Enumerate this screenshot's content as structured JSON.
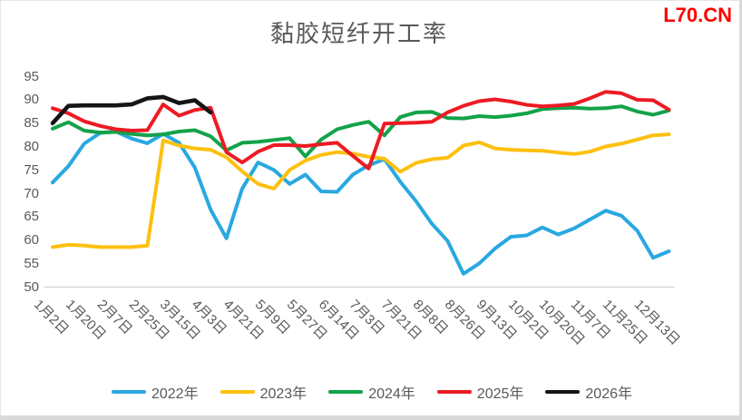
{
  "title": "黏胶短纤开工率",
  "watermark": "L70.CN",
  "colors": {
    "axis_line": "#d9d9d9",
    "tick_text": "#595959",
    "title_text": "#595959",
    "watermark_text": "#ff0000"
  },
  "chart_data": {
    "type": "line",
    "title": "黏胶短纤开工率",
    "ylabel": "",
    "xlabel": "",
    "ylim": [
      50,
      95
    ],
    "y_ticks": [
      50,
      55,
      60,
      65,
      70,
      75,
      80,
      85,
      90,
      95
    ],
    "grid": false,
    "legend_position": "bottom",
    "x_tick_labels": [
      "1月2日",
      "1月20日",
      "2月7日",
      "2月25日",
      "3月15日",
      "4月3日",
      "4月21日",
      "5月9日",
      "5月27日",
      "6月14日",
      "7月3日",
      "7月21日",
      "8月8日",
      "8月26日",
      "9月13日",
      "10月2日",
      "10月20日",
      "11月7日",
      "11月25日",
      "12月13日"
    ],
    "series": [
      {
        "name": "2022年",
        "color": "#29a8e1",
        "values": [
          72.3,
          75.8,
          80.6,
          82.9,
          83.2,
          81.7,
          80.7,
          82.7,
          80.8,
          75.5,
          66.5,
          60.4,
          71.0,
          76.6,
          75.0,
          72.0,
          74.0,
          70.4,
          70.3,
          74.0,
          76.0,
          77.3,
          72.5,
          68.3,
          63.5,
          59.8,
          52.8,
          55.0,
          58.2,
          60.7,
          61.0,
          62.7,
          61.2,
          62.5,
          64.4,
          66.3,
          65.2,
          62.0,
          56.2,
          57.6
        ]
      },
      {
        "name": "2023年",
        "color": "#fdc00f",
        "values": [
          58.5,
          59.0,
          58.8,
          58.5,
          58.5,
          58.5,
          58.8,
          81.3,
          80.2,
          79.6,
          79.3,
          77.7,
          74.7,
          72.0,
          71.0,
          75.0,
          77.0,
          78.2,
          78.8,
          78.5,
          77.8,
          77.4,
          74.6,
          76.5,
          77.3,
          77.6,
          80.2,
          80.9,
          79.6,
          79.3,
          79.2,
          79.1,
          78.7,
          78.4,
          78.9,
          80.0,
          80.6,
          81.5,
          82.4,
          82.6
        ]
      },
      {
        "name": "2024年",
        "color": "#13a24a",
        "values": [
          83.8,
          85.2,
          83.4,
          83.0,
          83.1,
          82.7,
          82.4,
          82.6,
          83.2,
          83.5,
          82.2,
          79.2,
          80.8,
          81.0,
          81.4,
          81.8,
          77.9,
          81.5,
          83.7,
          84.6,
          85.3,
          82.4,
          86.3,
          87.3,
          87.4,
          86.1,
          86.0,
          86.5,
          86.3,
          86.6,
          87.1,
          88.0,
          88.2,
          88.3,
          88.1,
          88.2,
          88.6,
          87.5,
          86.8,
          87.7
        ]
      },
      {
        "name": "2025年",
        "color": "#ec1b23",
        "values": [
          88.2,
          87.1,
          85.4,
          84.4,
          83.7,
          83.4,
          83.5,
          89.0,
          86.6,
          87.8,
          88.3,
          78.8,
          76.6,
          78.9,
          80.3,
          80.3,
          80.1,
          80.5,
          80.8,
          78.0,
          75.3,
          84.9,
          85.0,
          85.1,
          85.3,
          87.3,
          88.7,
          89.7,
          90.1,
          89.6,
          88.9,
          88.6,
          88.8,
          89.1,
          90.3,
          91.7,
          91.4,
          90.0,
          89.9,
          87.9
        ]
      },
      {
        "name": "2026年",
        "color": "#151515",
        "values": [
          85.0,
          88.7,
          88.8,
          88.8,
          88.8,
          89.0,
          90.3,
          90.6,
          89.3,
          89.9,
          87.3
        ]
      }
    ]
  }
}
